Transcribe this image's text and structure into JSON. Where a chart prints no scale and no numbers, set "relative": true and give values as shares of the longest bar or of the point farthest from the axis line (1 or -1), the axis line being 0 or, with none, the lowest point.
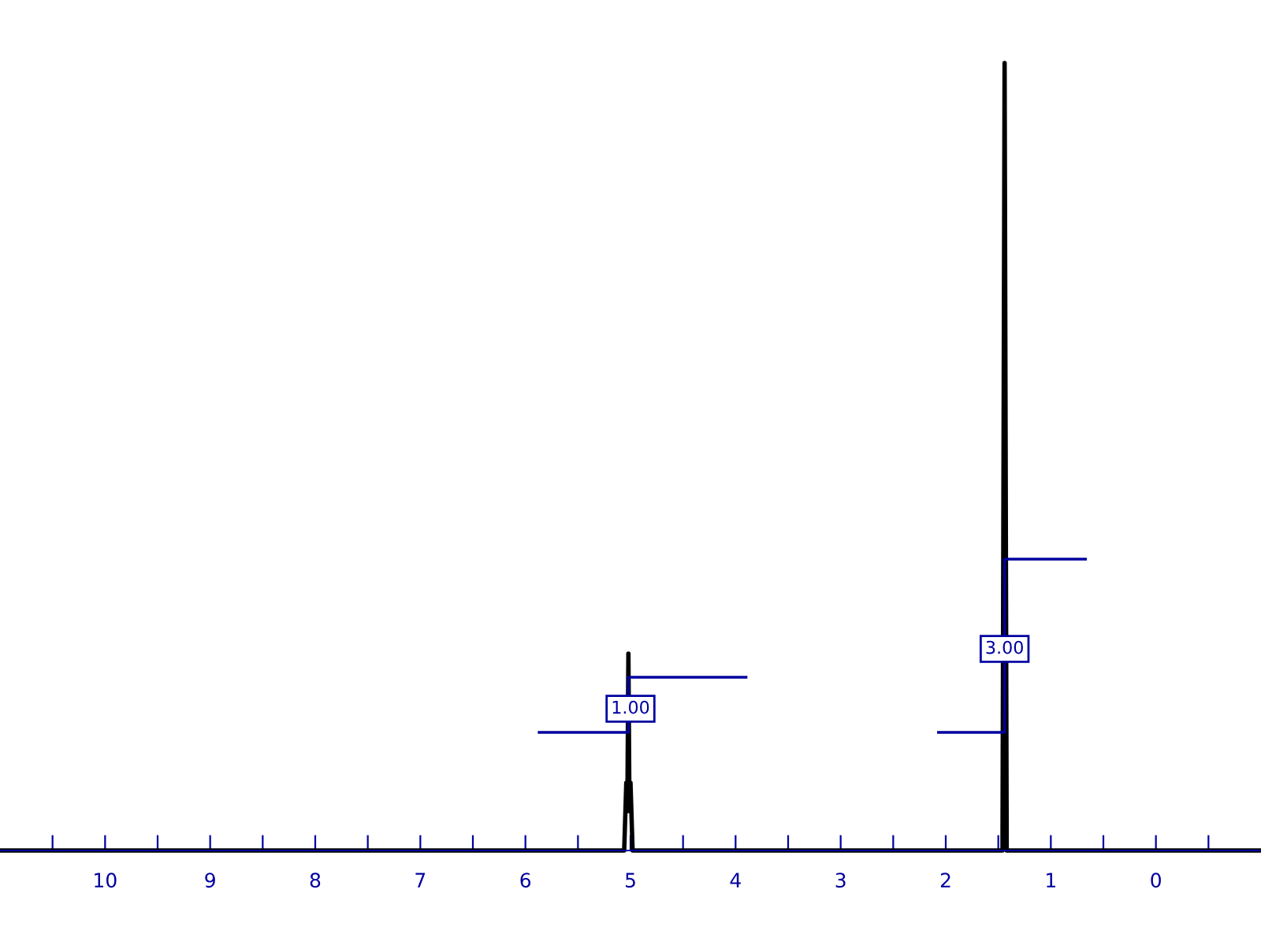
{
  "chart_data": {
    "type": "line",
    "relative": true,
    "xlim": [
      11,
      -1
    ],
    "xticks": [
      {
        "value": 10.5,
        "label": null
      },
      10,
      {
        "value": 9.5,
        "label": null
      },
      9,
      {
        "value": 8.5,
        "label": null
      },
      8,
      {
        "value": 7.5,
        "label": null
      },
      7,
      {
        "value": 6.5,
        "label": null
      },
      6,
      {
        "value": 5.5,
        "label": null
      },
      5,
      {
        "value": 4.5,
        "label": null
      },
      4,
      {
        "value": 3.5,
        "label": null
      },
      3,
      {
        "value": 2.5,
        "label": null
      },
      2,
      {
        "value": 1.5,
        "label": null
      },
      1,
      {
        "value": 0.5,
        "label": null
      },
      0,
      {
        "value": -0.5,
        "label": null
      }
    ],
    "tick_labels": "x",
    "grid": false,
    "legend": false,
    "marker": "none",
    "line_style": "solid",
    "series": [
      {
        "color": "#000000",
        "x": [
          11,
          5.06,
          5.04,
          5.03,
          5.02,
          5.01,
          5.0,
          4.98,
          1.46,
          1.44,
          1.42,
          -1
        ],
        "values": [
          0,
          0,
          0.086,
          0.05,
          0.25,
          0.05,
          0.086,
          0,
          0,
          1,
          0,
          0
        ]
      },
      {
        "color": "#0000a0",
        "x": [
          5.87,
          5.02,
          5.02,
          3.9
        ],
        "values": [
          0.15,
          0.15,
          0.22,
          0.22
        ]
      },
      {
        "color": "#0000a0",
        "x": [
          2.07,
          1.44,
          1.44,
          0.67
        ],
        "values": [
          0.15,
          0.15,
          0.37,
          0.37
        ]
      }
    ],
    "annotations": [
      {
        "text": "1.00",
        "x": 5.0,
        "y": 0.18
      },
      {
        "text": "3.00",
        "x": 1.44,
        "y": 0.256
      }
    ]
  }
}
